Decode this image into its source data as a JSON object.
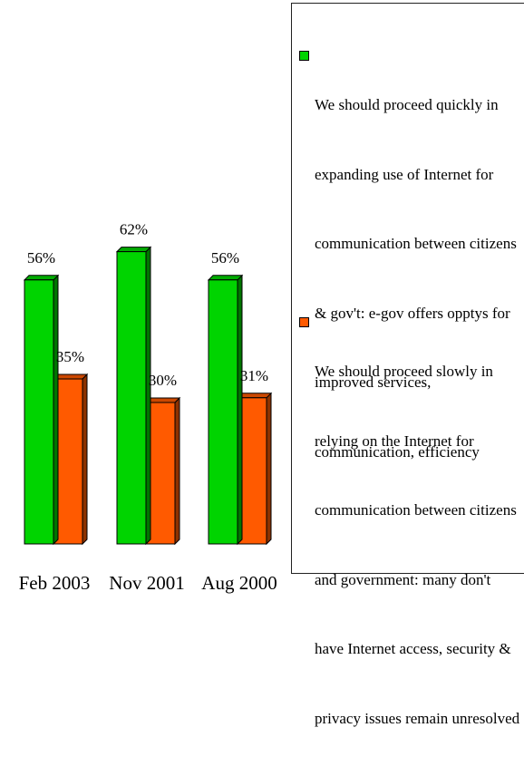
{
  "colors": {
    "green": "#00d400",
    "orange": "#ff5a00"
  },
  "chart_data": {
    "type": "bar",
    "categories": [
      "Feb 2003",
      "Nov 2001",
      "Aug 2000"
    ],
    "series": [
      {
        "name": "We should proceed quickly in expanding use of Internet for communication between citizens & gov't: e-gov offers opptys for improved services, communication, efficiency",
        "values": [
          56,
          62,
          56
        ],
        "labels": [
          "56%",
          "62%",
          "56%"
        ],
        "color": "#00d400"
      },
      {
        "name": "We should proceed slowly in relying on the Internet for communication between citizens and government: many don't have Internet access, security & privacy issues remain unresolved",
        "values": [
          35,
          30,
          31
        ],
        "labels": [
          "35%",
          "30%",
          "31%"
        ],
        "color": "#ff5a00"
      }
    ],
    "ylim": [
      0,
      80
    ],
    "grid": false,
    "legend_position": "right"
  },
  "legend": {
    "items": [
      {
        "lines": [
          "We should proceed quickly in",
          "expanding use of Internet for",
          "communication between citizens",
          "& gov't: e-gov offers opptys for",
          "improved services,",
          "communication, efficiency"
        ]
      },
      {
        "lines": [
          "We should proceed slowly in",
          "relying on the Internet for",
          "communication between citizens",
          "and government: many don't",
          "have Internet access, security &",
          "privacy issues remain unresolved"
        ]
      }
    ]
  }
}
